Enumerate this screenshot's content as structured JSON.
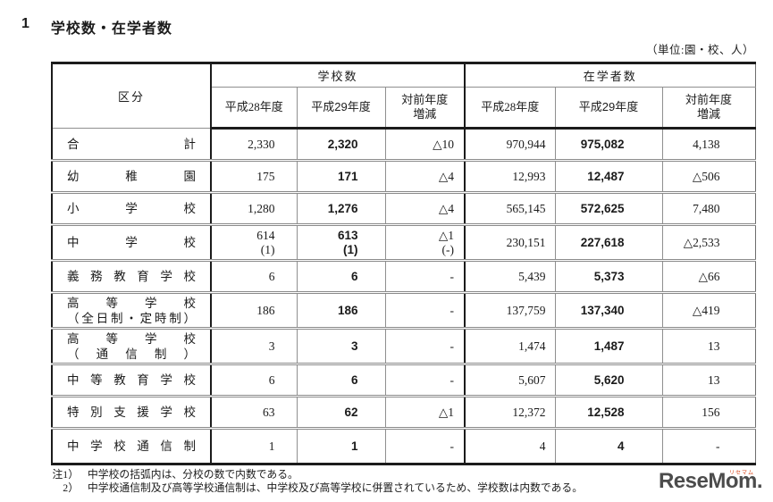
{
  "page": {
    "title_number": "1",
    "title_text": "学校数・在学者数",
    "unit_note": "（単位:園・校、人）"
  },
  "table": {
    "headers": {
      "category": "区分",
      "school_group": "学校数",
      "student_group": "在学者数",
      "year_h28": "平成28年度",
      "year_h29": "平成29年度",
      "diff": "対前年度\n増減"
    },
    "rows": [
      {
        "category": "合計",
        "school_h28": "2,330",
        "school_h29": "2,320",
        "school_diff": "△10",
        "students_h28": "970,944",
        "students_h29": "975,082",
        "students_diff": "4,138"
      },
      {
        "category": "幼稚園",
        "school_h28": "175",
        "school_h29": "171",
        "school_diff": "△4",
        "students_h28": "12,993",
        "students_h29": "12,487",
        "students_diff": "△506"
      },
      {
        "category": "小学校",
        "school_h28": "1,280",
        "school_h29": "1,276",
        "school_diff": "△4",
        "students_h28": "565,145",
        "students_h29": "572,625",
        "students_diff": "7,480"
      },
      {
        "category": "中学校",
        "school_h28": "614\n(1)",
        "school_h29": "613\n(1)",
        "school_diff": "△1\n(-)",
        "students_h28": "230,151",
        "students_h29": "227,618",
        "students_diff": "△2,533"
      },
      {
        "category": "義務教育学校",
        "school_h28": "6",
        "school_h29": "6",
        "school_diff": "-",
        "students_h28": "5,439",
        "students_h29": "5,373",
        "students_diff": "△66"
      },
      {
        "category": "高等学校",
        "category_line2": "（全日制・定時制）",
        "school_h28": "186",
        "school_h29": "186",
        "school_diff": "-",
        "students_h28": "137,759",
        "students_h29": "137,340",
        "students_diff": "△419"
      },
      {
        "category": "高等学校",
        "category_line2": "（通信制）",
        "school_h28": "3",
        "school_h29": "3",
        "school_diff": "-",
        "students_h28": "1,474",
        "students_h29": "1,487",
        "students_diff": "13"
      },
      {
        "category": "中等教育学校",
        "school_h28": "6",
        "school_h29": "6",
        "school_diff": "-",
        "students_h28": "5,607",
        "students_h29": "5,620",
        "students_diff": "13"
      },
      {
        "category": "特別支援学校",
        "school_h28": "63",
        "school_h29": "62",
        "school_diff": "△1",
        "students_h28": "12,372",
        "students_h29": "12,528",
        "students_diff": "156"
      },
      {
        "category": "中学校通信制",
        "school_h28": "1",
        "school_h29": "1",
        "school_diff": "-",
        "students_h28": "4",
        "students_h29": "4",
        "students_diff": "-"
      }
    ]
  },
  "notes": [
    {
      "prefix": "注1）",
      "text": "中学校の括弧内は、分校の数で内数である。"
    },
    {
      "prefix": "2）",
      "text": "中学校通信制及び高等学校通信制は、中学校及び高等学校に併置されているため、学校数は内数である。"
    }
  ],
  "logo": {
    "text": "ReseMom.",
    "ruby": "リセマム"
  }
}
